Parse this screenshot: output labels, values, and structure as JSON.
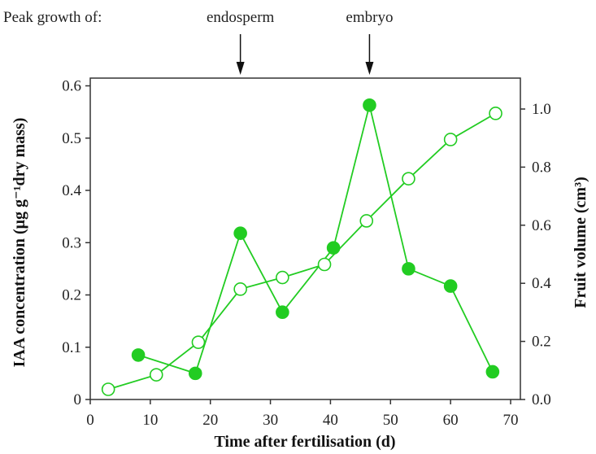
{
  "chart_data": {
    "type": "line",
    "title": "",
    "xlabel": "Time after fertilisation (d)",
    "ylabel_left": "IAA concentration (μg g⁻¹dry mass)",
    "ylabel_right": "Fruit volume (cm³)",
    "xlim": [
      0,
      70
    ],
    "ylim_left": [
      0,
      0.6
    ],
    "ylim_right": [
      0,
      1.1
    ],
    "x_ticks": [
      0,
      10,
      20,
      30,
      40,
      50,
      60,
      70
    ],
    "y_left_ticks": [
      "0",
      "0.1",
      "0.2",
      "0.3",
      "0.4",
      "0.5",
      "0.6"
    ],
    "y_left_tick_values": [
      0,
      0.1,
      0.2,
      0.3,
      0.4,
      0.5,
      0.6
    ],
    "y_right_ticks": [
      "0.0",
      "0.2",
      "0.4",
      "0.6",
      "0.8",
      "1.0"
    ],
    "y_right_tick_values": [
      0,
      0.2,
      0.4,
      0.6,
      0.8,
      1.0
    ],
    "grid": false,
    "series": [
      {
        "axis": "left",
        "marker": "filled",
        "color": "#22cc22",
        "x": [
          8,
          17.5,
          25,
          32,
          40.5,
          46.5,
          53,
          60,
          67
        ],
        "values": [
          0.085,
          0.05,
          0.318,
          0.167,
          0.29,
          0.563,
          0.25,
          0.217,
          0.053
        ]
      },
      {
        "axis": "right",
        "marker": "open",
        "color": "#22cc22",
        "x": [
          3,
          11,
          18,
          25,
          32,
          39,
          46,
          53,
          60,
          67.5
        ],
        "values": [
          0.035,
          0.085,
          0.197,
          0.38,
          0.42,
          0.465,
          0.615,
          0.76,
          0.895,
          0.985
        ]
      }
    ],
    "annotations": {
      "header": "Peak growth of:",
      "arrows": [
        {
          "label": "endosperm",
          "x": 25
        },
        {
          "label": "embryo",
          "x": 46.5
        }
      ]
    }
  }
}
